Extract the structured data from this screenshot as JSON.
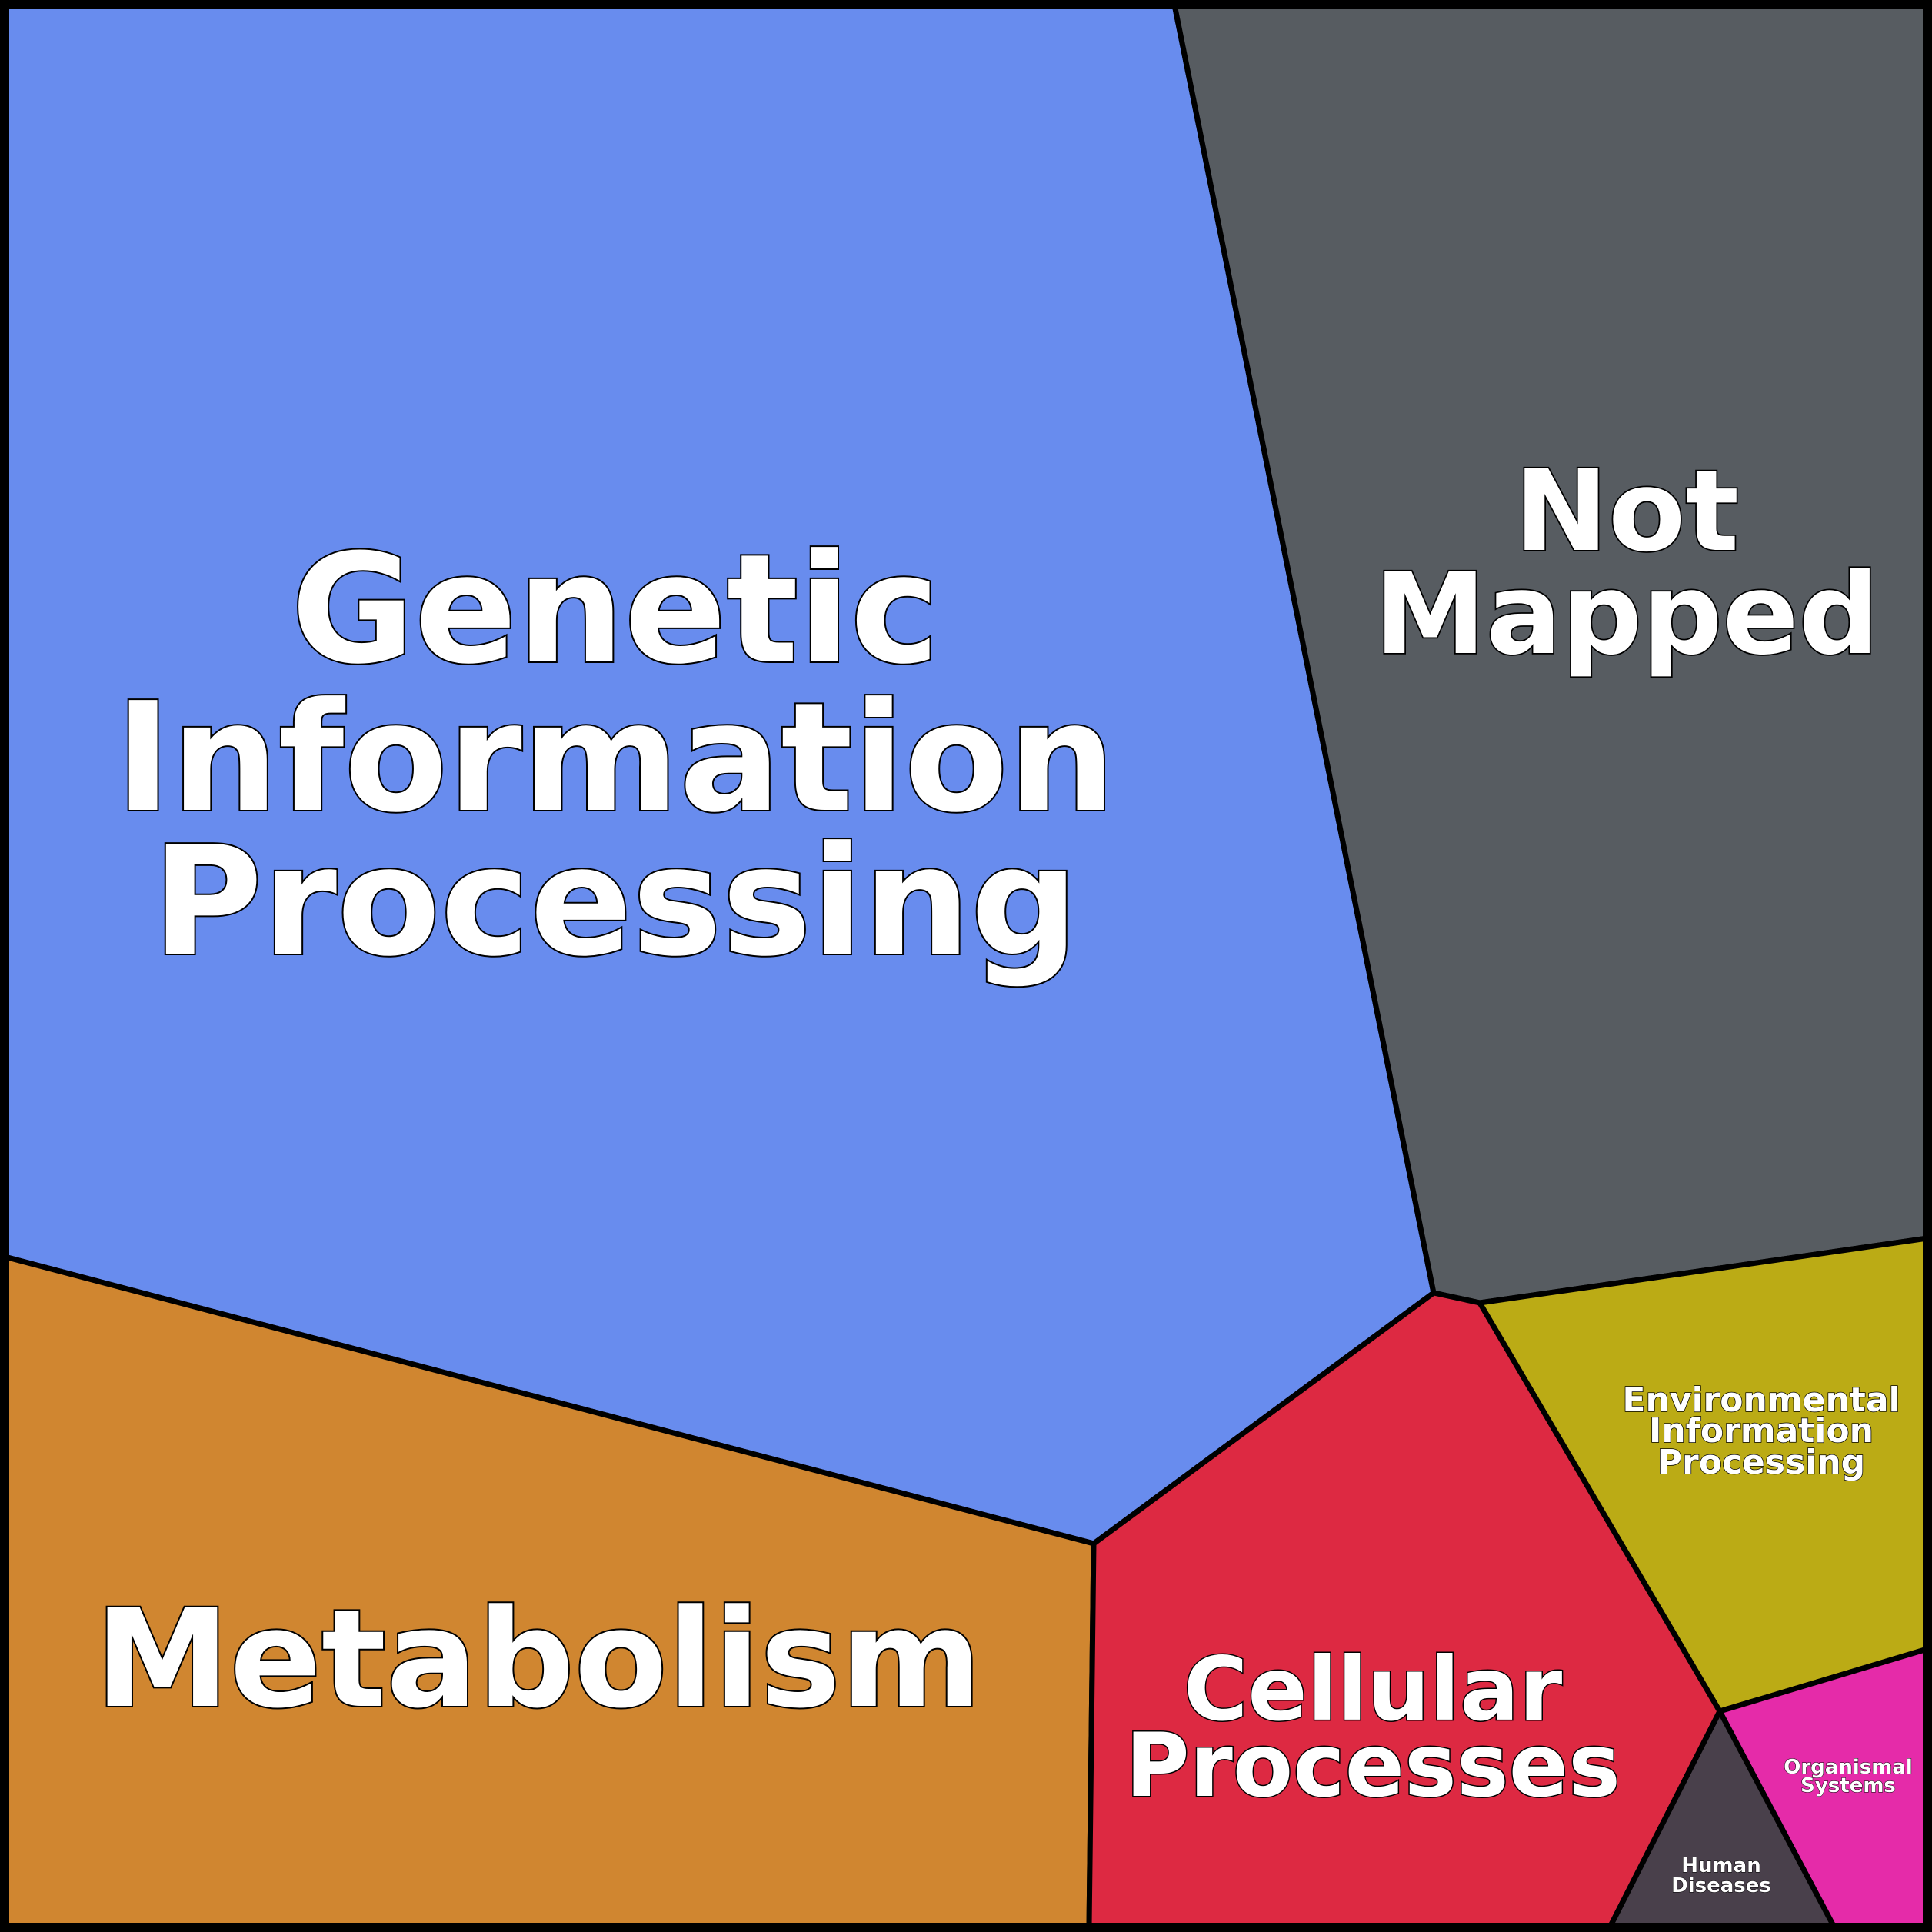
{
  "categories": [
    {
      "key": "genetic",
      "lines": [
        "Genetic",
        "Information",
        "Processing"
      ],
      "color": "#688CEE"
    },
    {
      "key": "notmapped",
      "lines": [
        "Not",
        "Mapped"
      ],
      "color": "#575C61"
    },
    {
      "key": "metabolism",
      "lines": [
        "Metabolism"
      ],
      "color": "#D08630"
    },
    {
      "key": "cellular",
      "lines": [
        "Cellular",
        "Processes"
      ],
      "color": "#DD2942"
    },
    {
      "key": "environmental",
      "lines": [
        "Environmental",
        "Information",
        "Processing"
      ],
      "color": "#BBAB15"
    },
    {
      "key": "organismal",
      "lines": [
        "Organismal",
        "Systems"
      ],
      "color": "#E52BA9"
    },
    {
      "key": "human",
      "lines": [
        "Human",
        "Diseases"
      ],
      "color": "#49404B"
    }
  ]
}
